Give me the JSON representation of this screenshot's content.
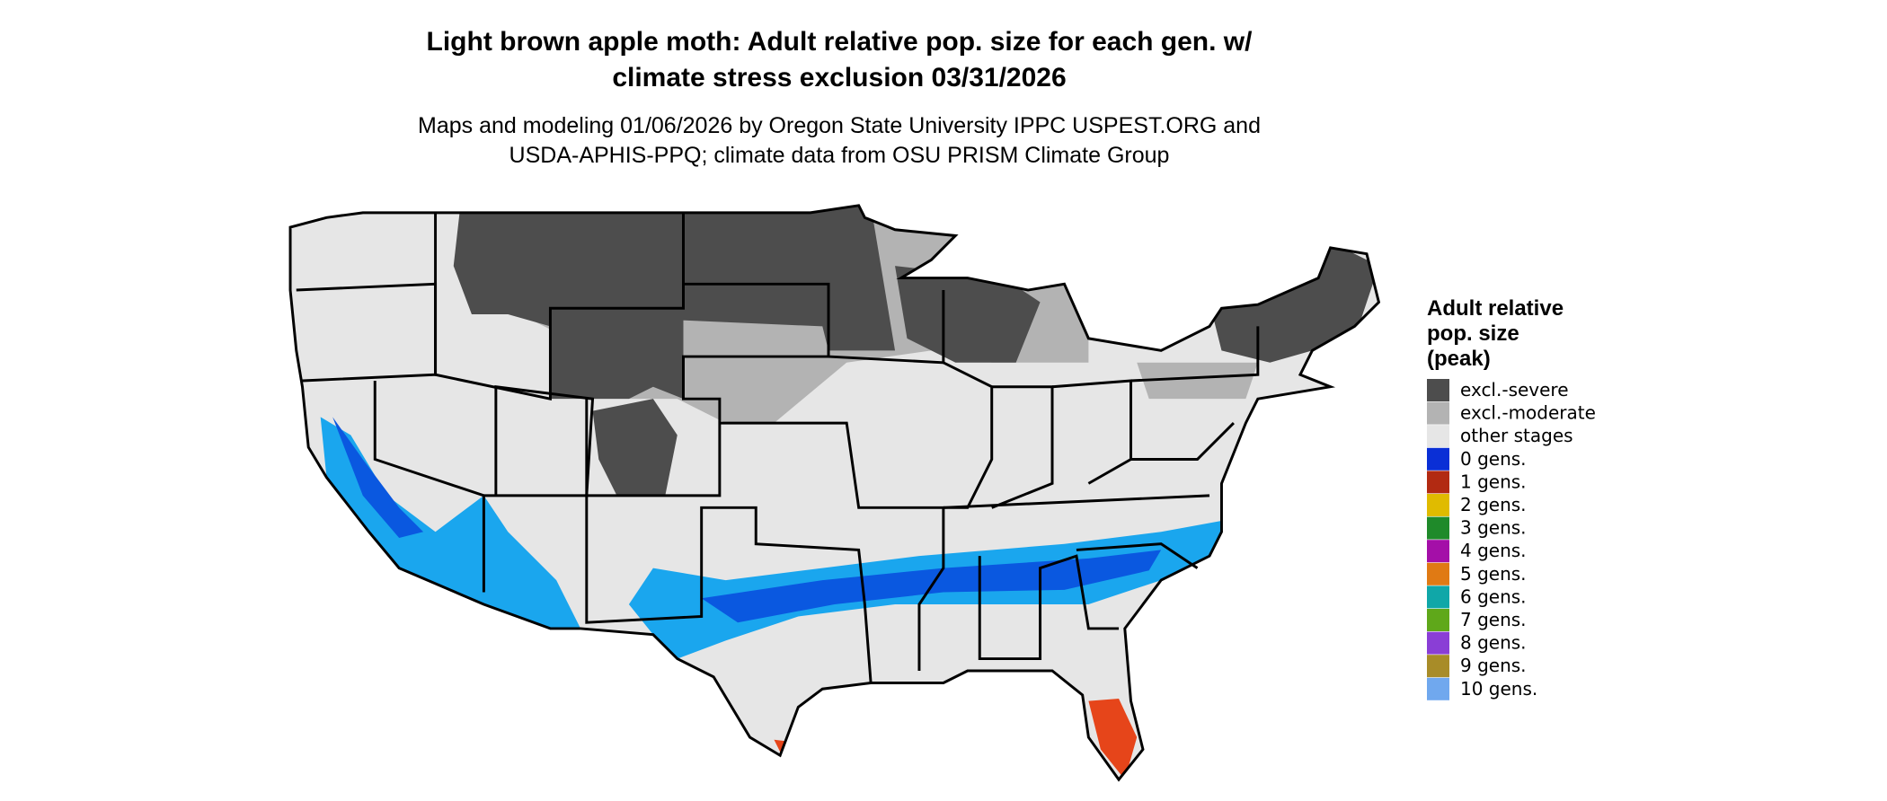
{
  "title": [
    "Light brown apple moth: Adult relative pop. size for each gen. w/",
    "climate stress exclusion 03/31/2026"
  ],
  "subtitle": [
    "Maps and modeling 01/06/2026 by Oregon State University IPPC USPEST.ORG and",
    "USDA-APHIS-PPQ; climate data from OSU PRISM Climate Group"
  ],
  "legend": {
    "title": [
      "Adult relative",
      "pop. size",
      "(peak)"
    ],
    "items": [
      {
        "label": "excl.-severe",
        "color": "#4d4d4d"
      },
      {
        "label": "excl.-moderate",
        "color": "#b3b3b3"
      },
      {
        "label": "other stages",
        "color": "#e6e6e6"
      },
      {
        "label": "0 gens.",
        "color": "#0a2fd6"
      },
      {
        "label": "1 gens.",
        "color": "#b22a12"
      },
      {
        "label": "2 gens.",
        "color": "#e0bb00"
      },
      {
        "label": "3 gens.",
        "color": "#1f8a2a"
      },
      {
        "label": "4 gens.",
        "color": "#a40fa8"
      },
      {
        "label": "5 gens.",
        "color": "#e07a14"
      },
      {
        "label": "6 gens.",
        "color": "#10a7a8"
      },
      {
        "label": "7 gens.",
        "color": "#5fa81a"
      },
      {
        "label": "8 gens.",
        "color": "#8a3ed6"
      },
      {
        "label": "9 gens.",
        "color": "#a88c28"
      },
      {
        "label": "10 gens.",
        "color": "#70a8ee"
      }
    ]
  }
}
